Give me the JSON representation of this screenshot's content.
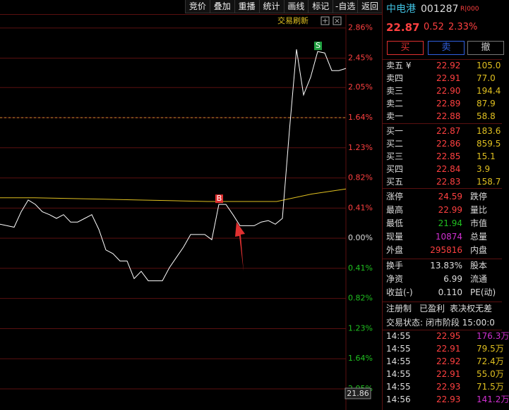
{
  "toolbar": [
    "竞价",
    "叠加",
    "重播",
    "统计",
    "画线",
    "标记",
    "-自选",
    "返回"
  ],
  "chart_refresh": "交易刷新",
  "price_box": "21.86",
  "chart_data": {
    "type": "line",
    "ylim": [
      -2.05,
      3.03
    ],
    "yticks": [
      {
        "value": 2.86,
        "label": "2.86%"
      },
      {
        "value": 2.45,
        "label": "2.45%"
      },
      {
        "value": 2.05,
        "label": "2.05%"
      },
      {
        "value": 1.64,
        "label": "1.64%"
      },
      {
        "value": 1.23,
        "label": "1.23%"
      },
      {
        "value": 0.82,
        "label": "0.82%"
      },
      {
        "value": 0.41,
        "label": "0.41%"
      },
      {
        "value": 0,
        "label": "0.00%"
      },
      {
        "value": -0.41,
        "label": "0.41%"
      },
      {
        "value": -0.82,
        "label": "0.82%"
      },
      {
        "value": -1.23,
        "label": "1.23%"
      },
      {
        "value": -1.64,
        "label": "1.64%"
      },
      {
        "value": -2.05,
        "label": "2.05%"
      }
    ],
    "grid": true,
    "series": [
      {
        "color": "#ffffff",
        "values": [
          0.19,
          0.17,
          0.15,
          0.36,
          0.52,
          0.46,
          0.36,
          0.32,
          0.27,
          0.32,
          0.22,
          0.22,
          0.27,
          0.32,
          0.12,
          -0.16,
          -0.21,
          -0.31,
          -0.31,
          -0.55,
          -0.45,
          -0.58,
          -0.58,
          -0.58,
          -0.4,
          -0.26,
          -0.12,
          0.05,
          0.05,
          0.05,
          -0.02,
          0.46,
          0.46,
          0.32,
          0.17,
          0.17,
          0.17,
          0.22,
          0.24,
          0.19,
          0.27,
          1.47,
          2.57,
          1.95,
          2.19,
          2.54,
          2.52,
          2.28,
          2.28,
          2.31
        ]
      },
      {
        "color": "#e0c020",
        "values": [
          0.55,
          0.55,
          0.54,
          0.53,
          0.52,
          0.51,
          0.5,
          0.5,
          0.5,
          0.6,
          0.67
        ]
      }
    ],
    "ref_line": {
      "value": 1.64,
      "color": "#e09030"
    },
    "markers": [
      {
        "label": "B",
        "index": 31,
        "value": 0.46,
        "color": "#e03030"
      },
      {
        "label": "S",
        "index": 45,
        "value": 2.54,
        "color": "#20a040"
      }
    ]
  },
  "quote": {
    "name": "中电港",
    "code": "001287",
    "badge": "R|000",
    "price": "22.87",
    "change": "0.52",
    "pct": "2.33%"
  },
  "buttons": [
    "买",
    "卖",
    "撤"
  ],
  "asks": [
    [
      "卖五 ¥",
      "22.92",
      "105.0"
    ],
    [
      "卖四",
      "22.91",
      "77.0"
    ],
    [
      "卖三",
      "22.90",
      "194.4"
    ],
    [
      "卖二",
      "22.89",
      "87.9"
    ],
    [
      "卖一",
      "22.88",
      "58.8"
    ]
  ],
  "bids": [
    [
      "买一",
      "22.87",
      "183.6"
    ],
    [
      "买二",
      "22.86",
      "859.5"
    ],
    [
      "买三",
      "22.85",
      "15.1"
    ],
    [
      "买四",
      "22.84",
      "3.9"
    ],
    [
      "买五",
      "22.83",
      "158.7"
    ]
  ],
  "stats": [
    [
      "涨停",
      "24.59",
      "跌停"
    ],
    [
      "最高",
      "22.99",
      "量比"
    ],
    [
      "最低",
      "21.94",
      "市值"
    ],
    [
      "现量",
      "10874",
      "总量"
    ],
    [
      "外盘",
      "295816",
      "内盘"
    ]
  ],
  "finance": [
    [
      "换手",
      "13.83%",
      "股本"
    ],
    [
      "净资",
      "6.99",
      "流通"
    ],
    [
      "收益(-)",
      "0.110",
      "PE(动)"
    ]
  ],
  "tags": [
    "注册制",
    "已盈利",
    "表决权无差"
  ],
  "status": "交易状态: 闭市阶段 15:00:0",
  "trades": [
    [
      "14:55",
      "22.95",
      "176.3万"
    ],
    [
      "14:55",
      "22.91",
      "79.5万"
    ],
    [
      "14:55",
      "22.92",
      "72.4万"
    ],
    [
      "14:55",
      "22.91",
      "55.0万"
    ],
    [
      "14:55",
      "22.93",
      "71.5万"
    ],
    [
      "14:56",
      "22.93",
      "141.2万"
    ]
  ]
}
